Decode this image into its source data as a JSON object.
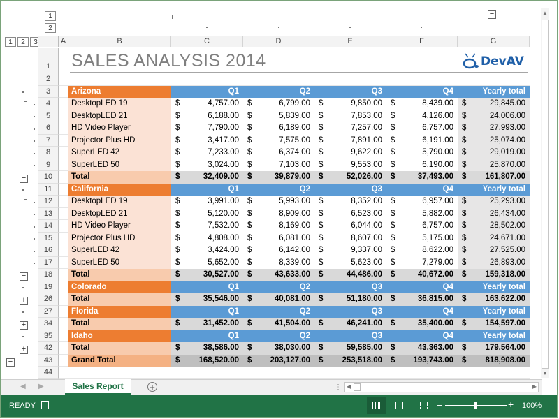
{
  "outline": {
    "col_levels": [
      "1",
      "2"
    ],
    "row_levels": [
      "1",
      "2",
      "3"
    ]
  },
  "columns": [
    "A",
    "B",
    "C",
    "D",
    "E",
    "F",
    "G"
  ],
  "rows": [
    {
      "n": "1",
      "type": "title",
      "title": "SALES ANALYSIS 2014",
      "logo": "DevAV"
    },
    {
      "n": "2",
      "type": "blank"
    },
    {
      "n": "3",
      "type": "header",
      "label": "Arizona",
      "q": [
        "Q1",
        "Q2",
        "Q3",
        "Q4",
        "Yearly total"
      ]
    },
    {
      "n": "4",
      "type": "data",
      "label": "DesktopLED 19",
      "v": [
        "4,757.00",
        "6,799.00",
        "9,850.00",
        "8,439.00",
        "29,845.00"
      ]
    },
    {
      "n": "5",
      "type": "data",
      "label": "DesktopLED 21",
      "v": [
        "6,188.00",
        "5,839.00",
        "7,853.00",
        "4,126.00",
        "24,006.00"
      ]
    },
    {
      "n": "6",
      "type": "data",
      "label": "HD Video Player",
      "v": [
        "7,790.00",
        "6,189.00",
        "7,257.00",
        "6,757.00",
        "27,993.00"
      ]
    },
    {
      "n": "7",
      "type": "data",
      "label": "Projector Plus HD",
      "v": [
        "3,417.00",
        "7,575.00",
        "7,891.00",
        "6,191.00",
        "25,074.00"
      ]
    },
    {
      "n": "8",
      "type": "data",
      "label": "SuperLED 42",
      "v": [
        "7,233.00",
        "6,374.00",
        "9,622.00",
        "5,790.00",
        "29,019.00"
      ]
    },
    {
      "n": "9",
      "type": "data",
      "label": "SuperLED 50",
      "v": [
        "3,024.00",
        "7,103.00",
        "9,553.00",
        "6,190.00",
        "25,870.00"
      ]
    },
    {
      "n": "10",
      "type": "total",
      "label": "Total",
      "v": [
        "32,409.00",
        "39,879.00",
        "52,026.00",
        "37,493.00",
        "161,807.00"
      ]
    },
    {
      "n": "11",
      "type": "header",
      "label": "California",
      "q": [
        "Q1",
        "Q2",
        "Q3",
        "Q4",
        "Yearly total"
      ]
    },
    {
      "n": "12",
      "type": "data",
      "label": "DesktopLED 19",
      "v": [
        "3,991.00",
        "5,993.00",
        "8,352.00",
        "6,957.00",
        "25,293.00"
      ]
    },
    {
      "n": "13",
      "type": "data",
      "label": "DesktopLED 21",
      "v": [
        "5,120.00",
        "8,909.00",
        "6,523.00",
        "5,882.00",
        "26,434.00"
      ]
    },
    {
      "n": "14",
      "type": "data",
      "label": "HD Video Player",
      "v": [
        "7,532.00",
        "8,169.00",
        "6,044.00",
        "6,757.00",
        "28,502.00"
      ]
    },
    {
      "n": "15",
      "type": "data",
      "label": "Projector Plus HD",
      "v": [
        "4,808.00",
        "6,081.00",
        "8,607.00",
        "5,175.00",
        "24,671.00"
      ]
    },
    {
      "n": "16",
      "type": "data",
      "label": "SuperLED 42",
      "v": [
        "3,424.00",
        "6,142.00",
        "9,337.00",
        "8,622.00",
        "27,525.00"
      ]
    },
    {
      "n": "17",
      "type": "data",
      "label": "SuperLED 50",
      "v": [
        "5,652.00",
        "8,339.00",
        "5,623.00",
        "7,279.00",
        "26,893.00"
      ]
    },
    {
      "n": "18",
      "type": "total",
      "label": "Total",
      "v": [
        "30,527.00",
        "43,633.00",
        "44,486.00",
        "40,672.00",
        "159,318.00"
      ]
    },
    {
      "n": "19",
      "type": "header",
      "label": "Colorado",
      "q": [
        "Q1",
        "Q2",
        "Q3",
        "Q4",
        "Yearly total"
      ]
    },
    {
      "n": "26",
      "type": "total",
      "label": "Total",
      "v": [
        "35,546.00",
        "40,081.00",
        "51,180.00",
        "36,815.00",
        "163,622.00"
      ]
    },
    {
      "n": "27",
      "type": "header",
      "label": "Florida",
      "q": [
        "Q1",
        "Q2",
        "Q3",
        "Q4",
        "Yearly total"
      ]
    },
    {
      "n": "34",
      "type": "total",
      "label": "Total",
      "v": [
        "31,452.00",
        "41,504.00",
        "46,241.00",
        "35,400.00",
        "154,597.00"
      ]
    },
    {
      "n": "35",
      "type": "header",
      "label": "Idaho",
      "q": [
        "Q1",
        "Q2",
        "Q3",
        "Q4",
        "Yearly total"
      ]
    },
    {
      "n": "42",
      "type": "total",
      "label": "Total",
      "v": [
        "38,586.00",
        "38,030.00",
        "59,585.00",
        "43,363.00",
        "179,564.00"
      ]
    },
    {
      "n": "43",
      "type": "grand",
      "label": "Grand Total",
      "v": [
        "168,520.00",
        "203,127.00",
        "253,518.00",
        "193,743.00",
        "818,908.00"
      ]
    },
    {
      "n": "44",
      "type": "blank"
    }
  ],
  "currency_symbol": "$",
  "tabs": {
    "active": "Sales Report",
    "add_icon": "plus-circle-icon"
  },
  "status": {
    "ready": "READY",
    "zoom": "100%"
  },
  "colors": {
    "orange": "#ed7d31",
    "blue": "#5b9bd5",
    "peach": "#fbe2d5",
    "total_gray": "#d9d9d9",
    "grand_gray": "#bfbfbf",
    "excel_green": "#217346"
  }
}
